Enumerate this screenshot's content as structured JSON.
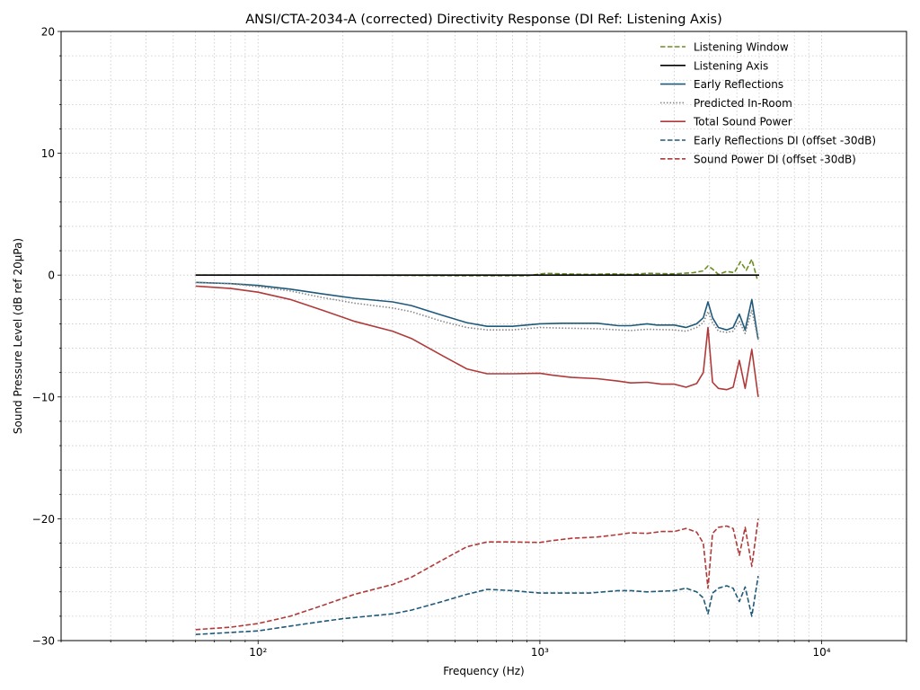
{
  "chart_data": {
    "type": "line",
    "title": "ANSI/CTA-2034-A (corrected) Directivity Response (DI Ref: Listening Axis)",
    "xlabel": "Frequency (Hz)",
    "ylabel": "Sound Pressure Level (dB ref 20µPa)",
    "x_scale": "log",
    "xlim": [
      20,
      20000
    ],
    "ylim": [
      -30,
      20
    ],
    "x_major_ticks": [
      {
        "value": 100,
        "label": "10²"
      },
      {
        "value": 1000,
        "label": "10³"
      },
      {
        "value": 10000,
        "label": "10⁴"
      }
    ],
    "y_major_ticks": [
      {
        "value": -30,
        "label": "−30"
      },
      {
        "value": -20,
        "label": "−20"
      },
      {
        "value": -10,
        "label": "−10"
      },
      {
        "value": 0,
        "label": "0"
      },
      {
        "value": 10,
        "label": "10"
      },
      {
        "value": 20,
        "label": "20"
      }
    ],
    "y_minor_step": 2,
    "grid": "major and minor, dotted",
    "legend_position": "top-right",
    "series": [
      {
        "name": "Listening Window",
        "color": "#6b8e23",
        "style": "dashed",
        "points": [
          [
            60,
            0
          ],
          [
            200,
            0
          ],
          [
            500,
            -0.05
          ],
          [
            900,
            -0.05
          ],
          [
            1050,
            0.15
          ],
          [
            1200,
            0.1
          ],
          [
            1500,
            0.05
          ],
          [
            1800,
            0.1
          ],
          [
            2100,
            0.05
          ],
          [
            2400,
            0.15
          ],
          [
            3000,
            0.1
          ],
          [
            3500,
            0.2
          ],
          [
            3800,
            0.35
          ],
          [
            3950,
            0.75
          ],
          [
            4100,
            0.5
          ],
          [
            4300,
            0.05
          ],
          [
            4600,
            0.3
          ],
          [
            4900,
            0.2
          ],
          [
            5150,
            1.1
          ],
          [
            5400,
            0.4
          ],
          [
            5650,
            1.3
          ],
          [
            5900,
            -0.3
          ]
        ]
      },
      {
        "name": "Listening Axis",
        "color": "#000000",
        "style": "solid",
        "points": [
          [
            60,
            0
          ],
          [
            6000,
            0
          ]
        ]
      },
      {
        "name": "Early Reflections",
        "color": "#1f5a7a",
        "style": "solid",
        "points": [
          [
            60,
            -0.6
          ],
          [
            80,
            -0.7
          ],
          [
            100,
            -0.85
          ],
          [
            130,
            -1.15
          ],
          [
            170,
            -1.55
          ],
          [
            220,
            -1.9
          ],
          [
            300,
            -2.2
          ],
          [
            350,
            -2.5
          ],
          [
            450,
            -3.3
          ],
          [
            550,
            -3.9
          ],
          [
            650,
            -4.2
          ],
          [
            800,
            -4.2
          ],
          [
            1000,
            -4.0
          ],
          [
            1200,
            -3.95
          ],
          [
            1600,
            -3.95
          ],
          [
            1900,
            -4.15
          ],
          [
            2100,
            -4.15
          ],
          [
            2400,
            -4.0
          ],
          [
            2600,
            -4.1
          ],
          [
            3000,
            -4.1
          ],
          [
            3300,
            -4.3
          ],
          [
            3600,
            -4.0
          ],
          [
            3800,
            -3.5
          ],
          [
            3950,
            -2.2
          ],
          [
            4100,
            -3.5
          ],
          [
            4300,
            -4.3
          ],
          [
            4600,
            -4.5
          ],
          [
            4850,
            -4.3
          ],
          [
            5100,
            -3.2
          ],
          [
            5350,
            -4.5
          ],
          [
            5650,
            -2.0
          ],
          [
            5950,
            -5.3
          ]
        ]
      },
      {
        "name": "Predicted In-Room",
        "color": "#888888",
        "style": "dotted",
        "points": [
          [
            60,
            -0.6
          ],
          [
            80,
            -0.7
          ],
          [
            100,
            -0.95
          ],
          [
            130,
            -1.3
          ],
          [
            170,
            -1.85
          ],
          [
            220,
            -2.3
          ],
          [
            300,
            -2.7
          ],
          [
            350,
            -3.0
          ],
          [
            450,
            -3.8
          ],
          [
            550,
            -4.3
          ],
          [
            650,
            -4.5
          ],
          [
            800,
            -4.5
          ],
          [
            1000,
            -4.3
          ],
          [
            1200,
            -4.35
          ],
          [
            1600,
            -4.4
          ],
          [
            1900,
            -4.5
          ],
          [
            2100,
            -4.55
          ],
          [
            2400,
            -4.45
          ],
          [
            3000,
            -4.5
          ],
          [
            3300,
            -4.6
          ],
          [
            3600,
            -4.3
          ],
          [
            3800,
            -3.9
          ],
          [
            3950,
            -3.0
          ],
          [
            4100,
            -3.9
          ],
          [
            4300,
            -4.6
          ],
          [
            4600,
            -4.7
          ],
          [
            4850,
            -4.6
          ],
          [
            5100,
            -3.8
          ],
          [
            5350,
            -4.8
          ],
          [
            5650,
            -2.9
          ],
          [
            5950,
            -5.3
          ]
        ]
      },
      {
        "name": "Total Sound Power",
        "color": "#b03a3a",
        "style": "solid",
        "points": [
          [
            60,
            -0.9
          ],
          [
            80,
            -1.1
          ],
          [
            100,
            -1.4
          ],
          [
            130,
            -2.0
          ],
          [
            170,
            -2.9
          ],
          [
            220,
            -3.8
          ],
          [
            300,
            -4.6
          ],
          [
            350,
            -5.2
          ],
          [
            450,
            -6.6
          ],
          [
            550,
            -7.7
          ],
          [
            650,
            -8.1
          ],
          [
            800,
            -8.1
          ],
          [
            1000,
            -8.05
          ],
          [
            1100,
            -8.2
          ],
          [
            1300,
            -8.4
          ],
          [
            1600,
            -8.5
          ],
          [
            1900,
            -8.7
          ],
          [
            2100,
            -8.85
          ],
          [
            2400,
            -8.8
          ],
          [
            2700,
            -8.95
          ],
          [
            3000,
            -8.95
          ],
          [
            3300,
            -9.2
          ],
          [
            3600,
            -8.9
          ],
          [
            3800,
            -8.0
          ],
          [
            3950,
            -4.3
          ],
          [
            4100,
            -8.8
          ],
          [
            4300,
            -9.3
          ],
          [
            4600,
            -9.4
          ],
          [
            4850,
            -9.2
          ],
          [
            5100,
            -7.0
          ],
          [
            5350,
            -9.3
          ],
          [
            5650,
            -6.1
          ],
          [
            5950,
            -10.0
          ]
        ]
      },
      {
        "name": "Early Reflections DI (offset -30dB)",
        "color": "#1f5a7a",
        "style": "dashed",
        "points": [
          [
            60,
            -29.5
          ],
          [
            100,
            -29.2
          ],
          [
            150,
            -28.6
          ],
          [
            200,
            -28.2
          ],
          [
            300,
            -27.8
          ],
          [
            350,
            -27.5
          ],
          [
            450,
            -26.8
          ],
          [
            550,
            -26.2
          ],
          [
            650,
            -25.8
          ],
          [
            800,
            -25.9
          ],
          [
            1000,
            -26.1
          ],
          [
            1500,
            -26.1
          ],
          [
            1900,
            -25.9
          ],
          [
            2100,
            -25.9
          ],
          [
            2400,
            -26.0
          ],
          [
            3000,
            -25.9
          ],
          [
            3300,
            -25.7
          ],
          [
            3600,
            -26.0
          ],
          [
            3800,
            -26.5
          ],
          [
            3950,
            -27.8
          ],
          [
            4100,
            -26.1
          ],
          [
            4300,
            -25.7
          ],
          [
            4600,
            -25.5
          ],
          [
            4850,
            -25.7
          ],
          [
            5100,
            -26.8
          ],
          [
            5350,
            -25.6
          ],
          [
            5650,
            -28.0
          ],
          [
            5950,
            -24.7
          ]
        ]
      },
      {
        "name": "Sound Power DI (offset -30dB)",
        "color": "#b03a3a",
        "style": "dashed",
        "points": [
          [
            60,
            -29.1
          ],
          [
            80,
            -28.9
          ],
          [
            100,
            -28.6
          ],
          [
            130,
            -28.0
          ],
          [
            170,
            -27.1
          ],
          [
            220,
            -26.2
          ],
          [
            300,
            -25.4
          ],
          [
            350,
            -24.8
          ],
          [
            450,
            -23.4
          ],
          [
            550,
            -22.3
          ],
          [
            650,
            -21.9
          ],
          [
            800,
            -21.9
          ],
          [
            1000,
            -21.95
          ],
          [
            1100,
            -21.8
          ],
          [
            1300,
            -21.6
          ],
          [
            1600,
            -21.5
          ],
          [
            1900,
            -21.3
          ],
          [
            2100,
            -21.15
          ],
          [
            2400,
            -21.2
          ],
          [
            2700,
            -21.05
          ],
          [
            3000,
            -21.05
          ],
          [
            3300,
            -20.8
          ],
          [
            3600,
            -21.1
          ],
          [
            3800,
            -22.0
          ],
          [
            3950,
            -25.7
          ],
          [
            4100,
            -21.2
          ],
          [
            4300,
            -20.7
          ],
          [
            4600,
            -20.6
          ],
          [
            4850,
            -20.8
          ],
          [
            5100,
            -23.0
          ],
          [
            5350,
            -20.7
          ],
          [
            5650,
            -23.9
          ],
          [
            5950,
            -20.0
          ]
        ]
      }
    ]
  }
}
